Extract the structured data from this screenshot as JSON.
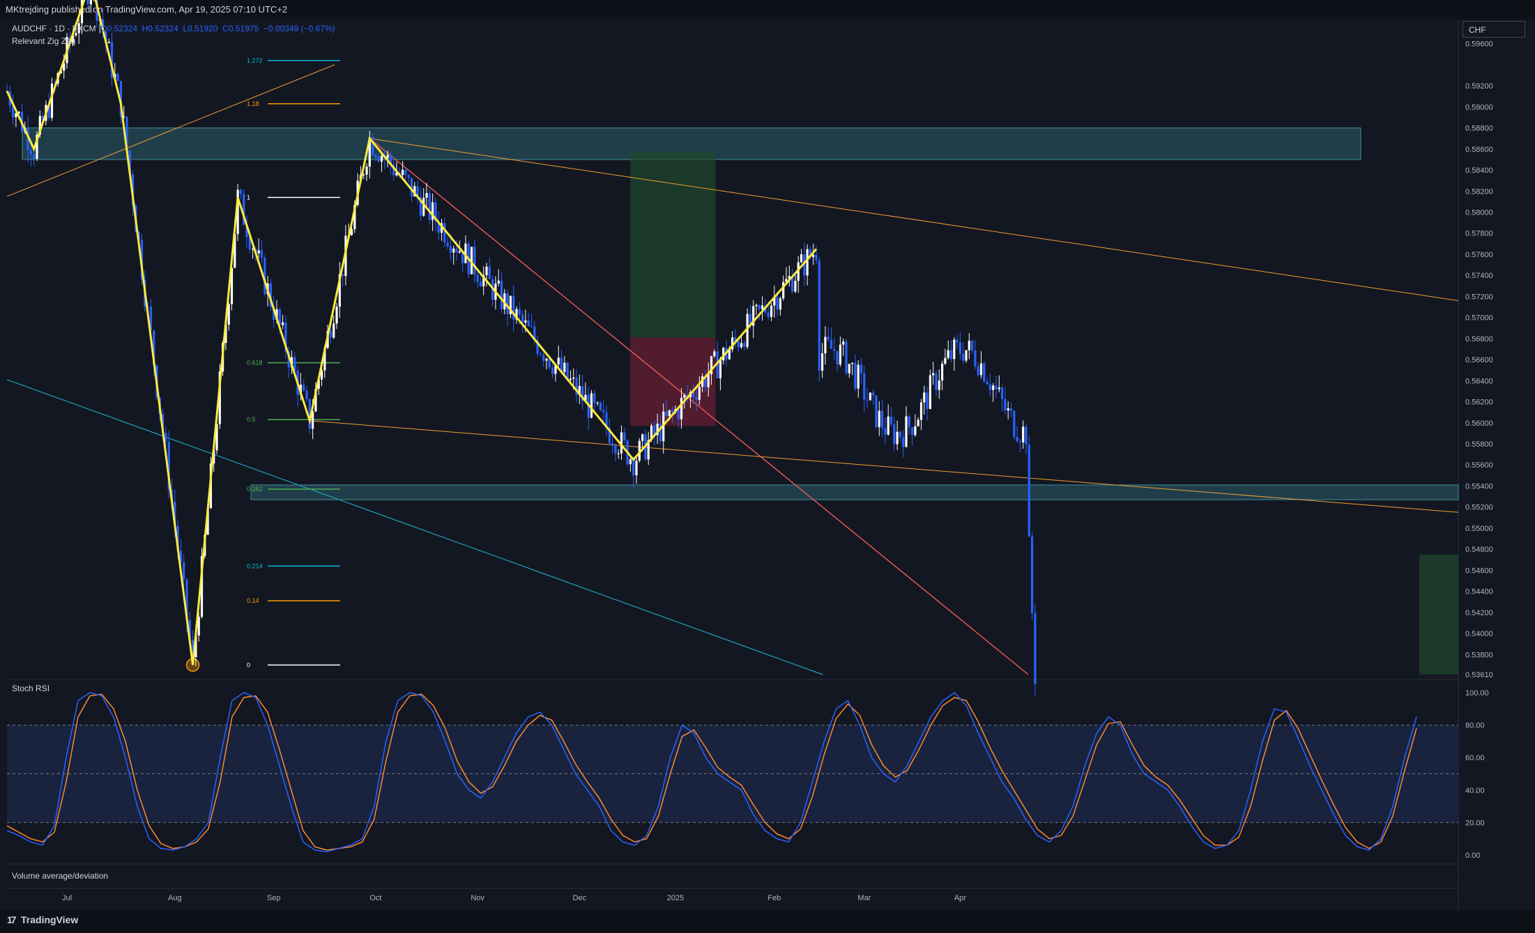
{
  "header": {
    "published": "MKtrejding published on TradingView.com, Apr 19, 2025 07:10 UTC+2"
  },
  "legend": {
    "symbol": "AUDCHF · 1D · FXCM",
    "open": "O0.52324",
    "high": "H0.52324",
    "low": "L0.51920",
    "close": "C0.51975",
    "change": "−0.00349 (−0.67%)",
    "indicator": "Relevant Zig Zag"
  },
  "currency": "CHF",
  "stoch_label": "Stoch RSI",
  "volume_label": "Volume average/deviation",
  "brand": "TradingView",
  "colors": {
    "background": "#131722",
    "up_candle": "#ffffff",
    "down_candle": "#2962ff",
    "zigzag": "#ffeb3b",
    "zone": "#2c5f6b",
    "trendline": "#f0a030",
    "stoch_k": "#2962ff",
    "stoch_d": "#ff8a30"
  },
  "chart_data": {
    "type": "candlestick",
    "price_axis": [
      "0.59600",
      "0.59200",
      "0.59000",
      "0.58800",
      "0.58600",
      "0.58400",
      "0.58200",
      "0.58000",
      "0.57800",
      "0.57600",
      "0.57400",
      "0.57200",
      "0.57000",
      "0.56800",
      "0.56600",
      "0.56400",
      "0.56200",
      "0.56000",
      "0.55800",
      "0.55600",
      "0.55400",
      "0.55200",
      "0.55000",
      "0.54800",
      "0.54600",
      "0.54400",
      "0.54200",
      "0.54000",
      "0.53800",
      "0.53610"
    ],
    "price_values": [
      0.596,
      0.592,
      0.59,
      0.588,
      0.586,
      0.584,
      0.582,
      0.58,
      0.578,
      0.576,
      0.574,
      0.572,
      0.57,
      0.568,
      0.566,
      0.564,
      0.562,
      0.56,
      0.558,
      0.556,
      0.554,
      0.552,
      0.55,
      0.548,
      0.546,
      0.544,
      0.542,
      0.54,
      0.538,
      0.5361
    ],
    "ylim": [
      0.5361,
      0.5975
    ],
    "time_axis": [
      "Jul",
      "Aug",
      "Sep",
      "Oct",
      "Nov",
      "Dec",
      "2025",
      "Feb",
      "Mar",
      "Apr"
    ],
    "time_index": [
      20,
      56,
      89,
      123,
      157,
      191,
      223,
      256,
      286,
      318
    ],
    "fib_levels": [
      {
        "label": "1.272",
        "value": 0.5944
      },
      {
        "label": "1.18",
        "value": 0.5903
      },
      {
        "label": "1",
        "value": 0.5814
      },
      {
        "label": "0.618",
        "value": 0.5657
      },
      {
        "label": "0.5",
        "value": 0.5603
      },
      {
        "label": "0.382",
        "value": 0.5537
      },
      {
        "label": "0.214",
        "value": 0.5464
      },
      {
        "label": "0.14",
        "value": 0.5431
      },
      {
        "label": "0",
        "value": 0.537
      }
    ],
    "zigzag": [
      [
        0,
        0.5915
      ],
      [
        9,
        0.586
      ],
      [
        28,
        0.602
      ],
      [
        38,
        0.5903
      ],
      [
        62,
        0.537
      ],
      [
        77,
        0.5814
      ],
      [
        101,
        0.5602
      ],
      [
        121,
        0.587
      ],
      [
        209,
        0.5565
      ],
      [
        270,
        0.5765
      ]
    ],
    "stoch_axis": [
      "100.00",
      "80.00",
      "60.00",
      "40.00",
      "20.00",
      "0.00"
    ],
    "stoch_values": [
      100,
      80,
      60,
      40,
      20,
      0
    ],
    "stoch_k": [
      15,
      12,
      8,
      6,
      18,
      60,
      95,
      100,
      98,
      85,
      60,
      30,
      10,
      4,
      3,
      5,
      10,
      20,
      60,
      95,
      100,
      97,
      80,
      55,
      30,
      8,
      3,
      2,
      4,
      6,
      10,
      30,
      70,
      95,
      100,
      98,
      88,
      70,
      50,
      40,
      35,
      45,
      60,
      75,
      85,
      88,
      80,
      65,
      50,
      40,
      30,
      15,
      8,
      6,
      12,
      30,
      60,
      80,
      75,
      60,
      50,
      45,
      40,
      25,
      15,
      10,
      8,
      20,
      45,
      70,
      90,
      95,
      80,
      60,
      50,
      45,
      55,
      70,
      85,
      95,
      100,
      92,
      75,
      60,
      45,
      35,
      22,
      12,
      8,
      15,
      30,
      55,
      75,
      85,
      80,
      62,
      50,
      45,
      40,
      30,
      18,
      8,
      4,
      6,
      15,
      40,
      70,
      90,
      88,
      72,
      55,
      40,
      25,
      12,
      5,
      3,
      10,
      30,
      60,
      85
    ],
    "stoch_d": [
      18,
      14,
      10,
      8,
      14,
      45,
      85,
      98,
      99,
      90,
      70,
      40,
      18,
      7,
      4,
      5,
      8,
      16,
      45,
      85,
      97,
      98,
      88,
      65,
      40,
      15,
      5,
      3,
      4,
      5,
      8,
      22,
      58,
      88,
      98,
      99,
      92,
      78,
      58,
      45,
      38,
      42,
      55,
      70,
      80,
      86,
      83,
      70,
      56,
      45,
      35,
      22,
      12,
      8,
      10,
      24,
      50,
      73,
      77,
      66,
      54,
      48,
      43,
      31,
      20,
      13,
      10,
      16,
      36,
      62,
      84,
      93,
      86,
      68,
      55,
      48,
      52,
      65,
      80,
      92,
      97,
      95,
      82,
      66,
      52,
      40,
      28,
      16,
      10,
      12,
      24,
      46,
      68,
      81,
      82,
      68,
      55,
      48,
      43,
      34,
      23,
      12,
      6,
      6,
      11,
      30,
      58,
      83,
      89,
      78,
      62,
      46,
      31,
      17,
      8,
      4,
      8,
      24,
      52,
      78
    ]
  }
}
